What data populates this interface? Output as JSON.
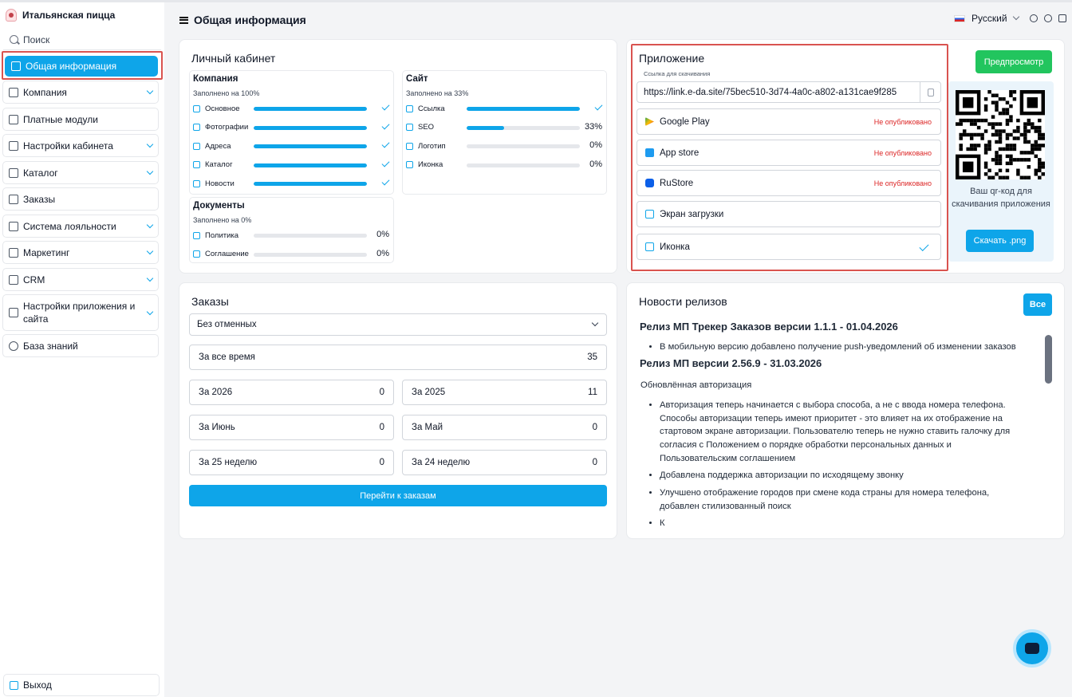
{
  "brand": {
    "name": "Итальянская пицца"
  },
  "sidebar": {
    "search_placeholder": "Поиск",
    "items": [
      {
        "label": "Общая информация",
        "icon": "document-icon",
        "active": true
      },
      {
        "label": "Компания",
        "icon": "building-icon",
        "expandable": true
      },
      {
        "label": "Платные модули",
        "icon": "modules-icon"
      },
      {
        "label": "Настройки кабинета",
        "icon": "settings-icon",
        "expandable": true
      },
      {
        "label": "Каталог",
        "icon": "catalog-icon",
        "expandable": true
      },
      {
        "label": "Заказы",
        "icon": "cloche-icon"
      },
      {
        "label": "Система лояльности",
        "icon": "loyalty-icon",
        "expandable": true
      },
      {
        "label": "Маркетинг",
        "icon": "marketing-icon",
        "expandable": true
      },
      {
        "label": "CRM",
        "icon": "crm-icon",
        "expandable": true
      },
      {
        "label": "Настройки приложения и сайта",
        "icon": "app-settings-icon",
        "expandable": true
      },
      {
        "label": "База знаний",
        "icon": "question-icon"
      }
    ],
    "logout_label": "Выход"
  },
  "header": {
    "title": "Общая информация",
    "language": "Русский"
  },
  "cabinet": {
    "title": "Личный кабинет",
    "company": {
      "title": "Компания",
      "subtitle": "Заполнено на 100%",
      "rows": [
        {
          "label": "Основное",
          "value": 100,
          "done": true
        },
        {
          "label": "Фотографии",
          "value": 100,
          "done": true
        },
        {
          "label": "Адреса",
          "value": 100,
          "done": true
        },
        {
          "label": "Каталог",
          "value": 100,
          "done": true
        },
        {
          "label": "Новости",
          "value": 100,
          "done": true
        }
      ]
    },
    "site": {
      "title": "Сайт",
      "subtitle": "Заполнено на 33%",
      "rows": [
        {
          "label": "Ссылка",
          "value": 100,
          "done": true,
          "text": ""
        },
        {
          "label": "SEO",
          "value": 33,
          "done": false,
          "text": "33%"
        },
        {
          "label": "Логотип",
          "value": 0,
          "done": false,
          "text": "0%"
        },
        {
          "label": "Иконка",
          "value": 0,
          "done": false,
          "text": "0%"
        }
      ]
    },
    "documents": {
      "title": "Документы",
      "subtitle": "Заполнено на 0%",
      "rows": [
        {
          "label": "Политика",
          "value": 0,
          "text": "0%"
        },
        {
          "label": "Соглашение",
          "value": 0,
          "text": "0%"
        }
      ]
    }
  },
  "app": {
    "title": "Приложение",
    "preview_label": "Предпросмотр",
    "link_label": "Ссылка для скачивания",
    "link_value": "https://link.e-da.site/75bec510-3d74-4a0c-a802-a131cae9f285",
    "stores": [
      {
        "label": "Google Play",
        "status": "Не опубликовано",
        "icon": "google-play-icon"
      },
      {
        "label": "App store",
        "status": "Не опубликовано",
        "icon": "app-store-icon"
      },
      {
        "label": "RuStore",
        "status": "Не опубликовано",
        "icon": "rustore-icon"
      },
      {
        "label": "Экран загрузки",
        "status": "",
        "icon": "image-icon"
      },
      {
        "label": "Иконка",
        "status": "",
        "icon": "image-icon",
        "done": true
      }
    ],
    "qr_text": "Ваш qr-код для скачивания приложения",
    "download_label": "Скачать .png"
  },
  "orders": {
    "title": "Заказы",
    "filter": "Без отменных",
    "all_time": {
      "label": "За все время",
      "value": "35"
    },
    "stats": [
      {
        "label": "За 2026",
        "value": "0"
      },
      {
        "label": "За 2025",
        "value": "11"
      },
      {
        "label": "За Июнь",
        "value": "0"
      },
      {
        "label": "За Май",
        "value": "0"
      },
      {
        "label": "За 25 неделю",
        "value": "0"
      },
      {
        "label": "За 24 неделю",
        "value": "0"
      }
    ],
    "goto_label": "Перейти к заказам"
  },
  "news": {
    "title": "Новости релизов",
    "all_label": "Все",
    "r1_title": "Релиз МП Трекер Заказов версии 1.1.1 - 01.04.2026",
    "r1_items": [
      "В мобильную версию добавлено получение push-уведомлений об изменении заказов"
    ],
    "r2_title": "Релиз МП версии 2.56.9 - 31.03.2026",
    "r2_intro": "Обновлённая авторизация",
    "r2_items": [
      "Авторизация теперь начинается с выбора способа, а не с ввода номера телефона. Способы авторизации теперь имеют приоритет - это влияет на их отображение на стартовом экране авторизации. Пользователю теперь не нужно ставить галочку для согласия с Положением о порядке обработки персональных данных и Пользовательским соглашением",
      "Добавлена поддержка авторизации по исходящему звонку",
      "Улучшено отображение городов при смене кода страны для номера телефона, добавлен стилизованный поиск",
      "К"
    ]
  },
  "colors": {
    "accent": "#0ea5e9",
    "success": "#16a34a",
    "danger": "#dc2626",
    "highlight": "#d9534f"
  }
}
